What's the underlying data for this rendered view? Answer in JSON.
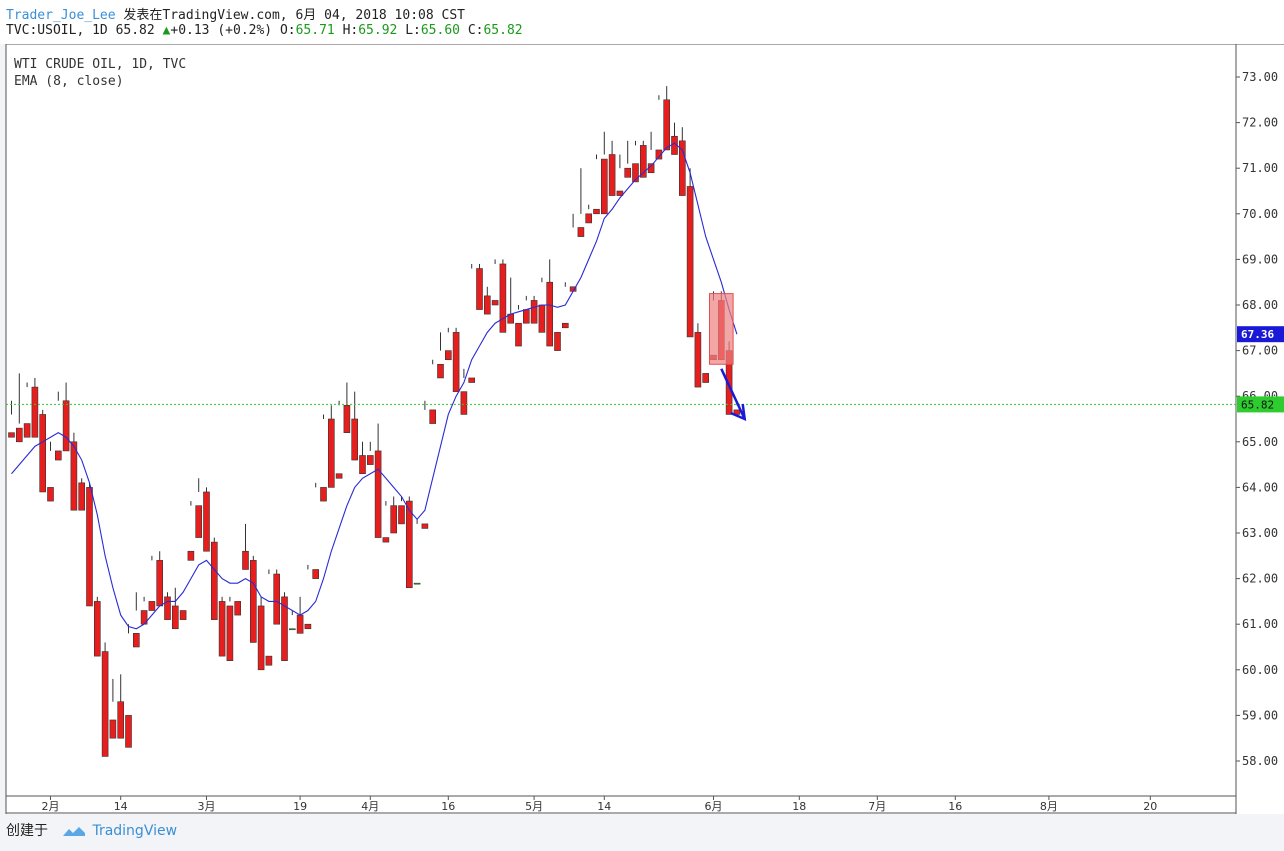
{
  "header": {
    "author": "Trader_Joe_Lee",
    "published_text": " 发表在TradingView.com, 6月 04, 2018 10:08 CST",
    "symbol_line": "TVC:USOIL, 1D 65.82",
    "change": "+0.13 (+0.2%)",
    "o_label": "O:",
    "o_value": "65.71",
    "h_label": "H:",
    "h_value": "65.92",
    "l_label": "L:",
    "l_value": "65.60",
    "c_label": "C:",
    "c_value": "65.82"
  },
  "legend": {
    "title": "WTI CRUDE OIL, 1D, TVC",
    "indicator": "EMA (8, close)"
  },
  "footer": {
    "created_text": "创建于",
    "brand": "TradingView"
  },
  "colors": {
    "up": "#2ecc2e",
    "down": "#e61e1e",
    "ema": "#2a2ad6",
    "arrow": "#1a1ad6",
    "price_line": "#2ecc2e",
    "ema_badge": "#1a1ad6",
    "highlight_box": "#f08080"
  },
  "chart_data": {
    "type": "candlestick",
    "title": "WTI CRUDE OIL, 1D, TVC",
    "indicator": "EMA (8, close)",
    "ylim": [
      57.4,
      73.5
    ],
    "y_ticks": [
      "58.00",
      "59.00",
      "60.00",
      "61.00",
      "62.00",
      "63.00",
      "64.00",
      "65.00",
      "66.00",
      "67.00",
      "68.00",
      "69.00",
      "70.00",
      "71.00",
      "72.00",
      "73.00"
    ],
    "x_ticks": [
      {
        "label": "2月",
        "index": 5
      },
      {
        "label": "14",
        "index": 14
      },
      {
        "label": "3月",
        "index": 25
      },
      {
        "label": "19",
        "index": 37
      },
      {
        "label": "4月",
        "index": 46
      },
      {
        "label": "16",
        "index": 56
      },
      {
        "label": "5月",
        "index": 67
      },
      {
        "label": "14",
        "index": 76
      },
      {
        "label": "6月",
        "index": 90
      },
      {
        "label": "18",
        "index": 101
      },
      {
        "label": "7月",
        "index": 111
      },
      {
        "label": "16",
        "index": 121
      },
      {
        "label": "8月",
        "index": 133
      },
      {
        "label": "20",
        "index": 146
      }
    ],
    "last_price": "65.82",
    "ema_last": "67.36",
    "candles": [
      [
        65.2,
        65.9,
        65.6,
        65.1
      ],
      [
        65.3,
        66.5,
        65.4,
        65.0
      ],
      [
        65.4,
        66.3,
        66.2,
        65.1
      ],
      [
        66.2,
        66.4,
        65.6,
        65.1
      ],
      [
        65.6,
        65.7,
        64.0,
        63.9
      ],
      [
        64.0,
        65.0,
        64.8,
        63.7
      ],
      [
        64.8,
        66.1,
        65.9,
        64.6
      ],
      [
        65.9,
        66.3,
        65.0,
        64.8
      ],
      [
        65.0,
        65.2,
        63.6,
        63.5
      ],
      [
        64.1,
        64.2,
        63.6,
        63.5
      ],
      [
        64.0,
        64.1,
        61.5,
        61.4
      ],
      [
        61.5,
        61.6,
        60.4,
        60.3
      ],
      [
        60.4,
        60.6,
        59.0,
        58.1
      ],
      [
        58.9,
        59.8,
        59.3,
        58.5
      ],
      [
        59.3,
        59.9,
        59.0,
        58.5
      ],
      [
        59.0,
        61.0,
        60.8,
        58.3
      ],
      [
        60.8,
        61.7,
        61.3,
        60.5
      ],
      [
        61.3,
        61.6,
        61.5,
        61.0
      ],
      [
        61.5,
        62.5,
        62.4,
        61.3
      ],
      [
        62.4,
        62.6,
        61.6,
        61.4
      ],
      [
        61.6,
        61.7,
        61.4,
        61.1
      ],
      [
        61.4,
        61.8,
        61.3,
        60.9
      ],
      [
        61.3,
        62.6,
        62.6,
        61.1
      ],
      [
        62.6,
        63.7,
        63.6,
        62.4
      ],
      [
        63.6,
        64.2,
        63.9,
        62.9
      ],
      [
        63.9,
        64.0,
        62.8,
        62.6
      ],
      [
        62.8,
        62.9,
        61.5,
        61.1
      ],
      [
        61.5,
        61.6,
        61.4,
        60.3
      ],
      [
        61.4,
        61.6,
        61.5,
        60.2
      ],
      [
        61.5,
        62.6,
        62.6,
        61.2
      ],
      [
        62.6,
        63.2,
        62.4,
        62.2
      ],
      [
        62.4,
        62.5,
        61.4,
        60.6
      ],
      [
        61.4,
        61.6,
        60.3,
        60.0
      ],
      [
        60.3,
        62.2,
        62.1,
        60.1
      ],
      [
        62.1,
        62.2,
        61.6,
        61.0
      ],
      [
        61.6,
        61.7,
        60.9,
        60.2
      ],
      [
        60.9,
        61.3,
        61.2,
        60.9
      ],
      [
        61.2,
        61.6,
        61.0,
        60.8
      ],
      [
        61.0,
        62.3,
        62.2,
        60.9
      ],
      [
        62.2,
        64.1,
        64.0,
        62.0
      ],
      [
        64.0,
        65.6,
        65.5,
        63.7
      ],
      [
        65.5,
        65.8,
        64.3,
        64.0
      ],
      [
        64.3,
        65.9,
        65.8,
        64.2
      ],
      [
        65.8,
        66.3,
        65.5,
        65.2
      ],
      [
        65.5,
        66.1,
        64.7,
        64.6
      ],
      [
        64.7,
        65.0,
        64.7,
        64.3
      ],
      [
        64.7,
        65.0,
        64.8,
        64.5
      ],
      [
        64.8,
        65.4,
        62.9,
        62.9
      ],
      [
        62.9,
        63.7,
        63.6,
        62.8
      ],
      [
        63.6,
        63.8,
        63.6,
        63.0
      ],
      [
        63.6,
        63.8,
        63.7,
        63.2
      ],
      [
        63.7,
        63.8,
        61.9,
        61.8
      ],
      [
        61.9,
        63.3,
        63.2,
        61.9
      ],
      [
        63.2,
        65.9,
        65.7,
        63.1
      ],
      [
        65.7,
        66.8,
        66.7,
        65.4
      ],
      [
        66.7,
        67.4,
        67.0,
        66.4
      ],
      [
        67.0,
        67.5,
        67.4,
        66.8
      ],
      [
        67.4,
        67.5,
        66.1,
        66.1
      ],
      [
        66.1,
        66.6,
        66.4,
        65.6
      ],
      [
        66.4,
        68.9,
        68.8,
        66.3
      ],
      [
        68.8,
        68.9,
        68.2,
        67.9
      ],
      [
        68.2,
        68.4,
        68.1,
        67.8
      ],
      [
        68.1,
        69.0,
        68.9,
        68.0
      ],
      [
        68.9,
        69.0,
        67.8,
        67.4
      ],
      [
        67.8,
        68.6,
        67.6,
        67.6
      ],
      [
        67.6,
        68.0,
        67.9,
        67.1
      ],
      [
        67.9,
        68.2,
        68.1,
        67.6
      ],
      [
        68.1,
        68.2,
        68.0,
        67.6
      ],
      [
        68.0,
        68.6,
        68.5,
        67.4
      ],
      [
        68.5,
        69.0,
        67.4,
        67.1
      ],
      [
        67.4,
        67.6,
        67.6,
        67.0
      ],
      [
        67.6,
        68.5,
        68.4,
        67.5
      ],
      [
        68.4,
        70.0,
        69.7,
        68.3
      ],
      [
        69.7,
        71.0,
        70.0,
        69.5
      ],
      [
        70.0,
        70.2,
        70.1,
        69.8
      ],
      [
        70.1,
        71.3,
        71.2,
        70.0
      ],
      [
        71.2,
        71.8,
        71.3,
        70.0
      ],
      [
        71.3,
        71.6,
        70.5,
        70.4
      ],
      [
        70.5,
        71.3,
        71.0,
        70.4
      ],
      [
        71.0,
        71.6,
        71.1,
        70.8
      ],
      [
        71.1,
        71.6,
        71.5,
        70.7
      ],
      [
        71.5,
        71.6,
        71.1,
        70.8
      ],
      [
        71.1,
        71.8,
        71.4,
        70.9
      ],
      [
        71.4,
        72.6,
        72.5,
        71.2
      ],
      [
        72.5,
        72.8,
        71.7,
        71.4
      ],
      [
        71.7,
        72.0,
        71.6,
        71.3
      ],
      [
        71.6,
        71.9,
        70.6,
        70.4
      ],
      [
        70.6,
        71.0,
        67.4,
        67.3
      ],
      [
        67.4,
        67.6,
        66.5,
        66.2
      ],
      [
        66.5,
        66.9,
        66.9,
        66.3
      ],
      [
        66.9,
        68.3,
        68.1,
        66.8
      ],
      [
        68.1,
        68.3,
        67.0,
        66.8
      ],
      [
        67.0,
        67.2,
        65.7,
        65.6
      ],
      [
        65.7,
        65.9,
        65.8,
        65.6
      ]
    ],
    "ema": [
      64.3,
      64.5,
      64.7,
      64.9,
      65.0,
      65.1,
      65.2,
      65.1,
      64.9,
      64.6,
      64.1,
      63.4,
      62.5,
      61.8,
      61.2,
      60.95,
      60.9,
      61.0,
      61.2,
      61.4,
      61.5,
      61.5,
      61.7,
      62.0,
      62.3,
      62.4,
      62.2,
      62.0,
      61.9,
      61.9,
      62.0,
      61.9,
      61.6,
      61.5,
      61.5,
      61.4,
      61.3,
      61.2,
      61.3,
      61.5,
      62.0,
      62.6,
      63.1,
      63.6,
      64.0,
      64.2,
      64.3,
      64.4,
      64.2,
      64.0,
      63.8,
      63.5,
      63.3,
      63.5,
      64.2,
      64.9,
      65.6,
      66.0,
      66.3,
      66.8,
      67.1,
      67.4,
      67.6,
      67.7,
      67.8,
      67.85,
      67.9,
      67.95,
      68.0,
      68.0,
      67.95,
      68.0,
      68.3,
      68.6,
      69.0,
      69.4,
      69.9,
      70.1,
      70.35,
      70.55,
      70.75,
      70.9,
      71.05,
      71.25,
      71.45,
      71.55,
      71.4,
      70.9,
      70.2,
      69.5,
      69.0,
      68.5,
      67.9,
      67.36
    ],
    "annotations": {
      "highlight_box": {
        "from_index": 90,
        "to_index": 92,
        "low": 66.7,
        "high": 68.25
      },
      "arrow": {
        "from_index": 91,
        "from_price": 66.6,
        "to_index": 94,
        "to_price": 65.5
      }
    }
  }
}
